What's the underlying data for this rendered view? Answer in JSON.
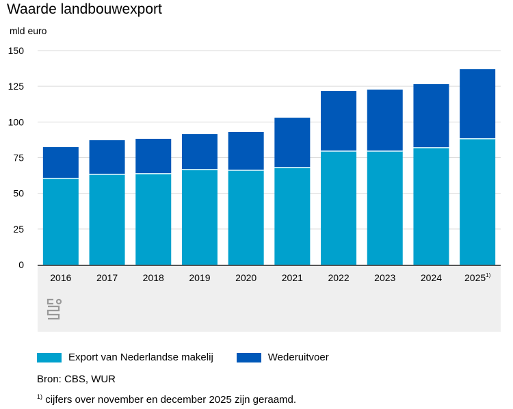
{
  "title": "Waarde landbouwexport",
  "unit": "mld euro",
  "chart_data": {
    "type": "bar",
    "stacked": true,
    "categories": [
      "2016",
      "2017",
      "2018",
      "2019",
      "2020",
      "2021",
      "2022",
      "2023",
      "2024",
      "2025"
    ],
    "category_footnote": {
      "2025": "1)"
    },
    "series": [
      {
        "name": "Export van Nederlandse makelij",
        "color": "#00a1cd",
        "values": [
          60.4,
          63.2,
          63.7,
          66.6,
          66.1,
          68.0,
          79.5,
          79.5,
          81.9,
          88.2
        ]
      },
      {
        "name": "Wederuitvoer",
        "color": "#0058b8",
        "values": [
          22.0,
          24.0,
          24.5,
          24.9,
          26.9,
          35.0,
          42.2,
          43.2,
          44.6,
          48.8
        ]
      }
    ],
    "ylim": [
      0,
      150
    ],
    "yticks": [
      "0",
      "25",
      "50",
      "75",
      "100",
      "125",
      "150"
    ],
    "grid": true,
    "legend_position": "bottom"
  },
  "source": "Bron: CBS, WUR",
  "footnote_mark": "1)",
  "footnote": "cijfers over november en december 2025 zijn geraamd.",
  "logo": "cbs"
}
